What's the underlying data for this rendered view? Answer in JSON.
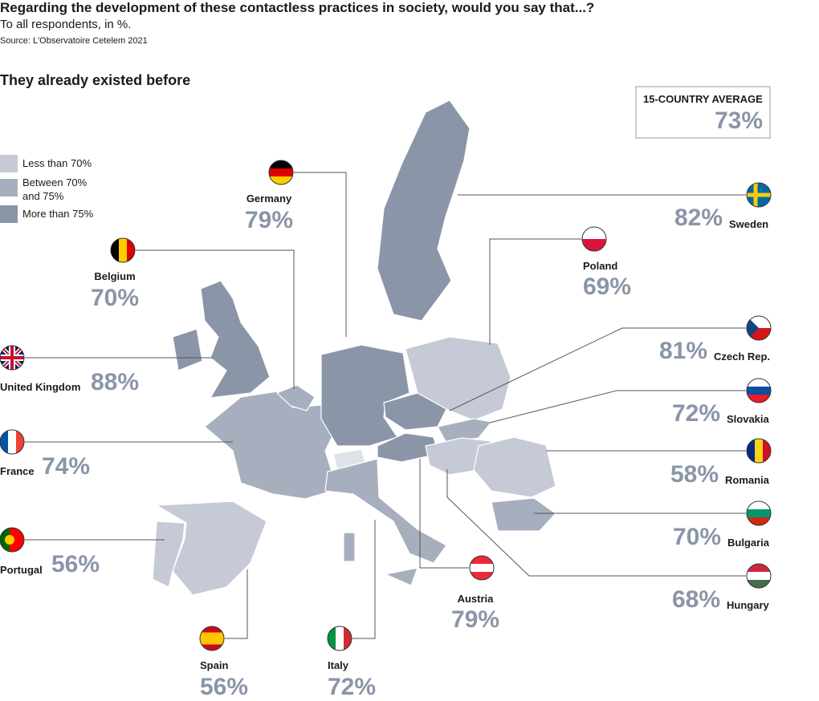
{
  "header": {
    "title": "Regarding the development of these contactless practices in society, would you say that...?",
    "subtitle": "To all respondents, in %.",
    "source": "Source: L'Observatoire Cetelem 2021"
  },
  "section_title": "They already existed before",
  "legend": [
    "Less than 70%",
    "Between 70% and 75%",
    "More than 75%"
  ],
  "average": {
    "label": "15-COUNTRY AVERAGE",
    "value": "73%"
  },
  "countries": [
    {
      "name": "Germany",
      "value": "79%"
    },
    {
      "name": "Belgium",
      "value": "70%"
    },
    {
      "name": "United Kingdom",
      "value": "88%"
    },
    {
      "name": "France",
      "value": "74%"
    },
    {
      "name": "Portugal",
      "value": "56%"
    },
    {
      "name": "Spain",
      "value": "56%"
    },
    {
      "name": "Italy",
      "value": "72%"
    },
    {
      "name": "Austria",
      "value": "79%"
    },
    {
      "name": "Hungary",
      "value": "68%"
    },
    {
      "name": "Bulgaria",
      "value": "70%"
    },
    {
      "name": "Romania",
      "value": "58%"
    },
    {
      "name": "Slovakia",
      "value": "72%"
    },
    {
      "name": "Czech Rep.",
      "value": "81%"
    },
    {
      "name": "Poland",
      "value": "69%"
    },
    {
      "name": "Sweden",
      "value": "82%"
    }
  ]
}
